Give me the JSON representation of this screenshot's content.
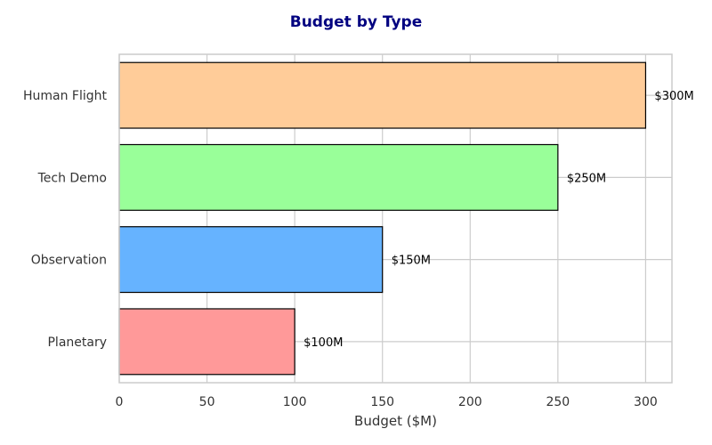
{
  "chart_data": {
    "type": "bar",
    "orientation": "horizontal",
    "title": "Budget by Type",
    "xlabel": "Budget ($M)",
    "ylabel": "",
    "categories": [
      "Planetary",
      "Observation",
      "Tech Demo",
      "Human Flight"
    ],
    "values": [
      100,
      150,
      250,
      300
    ],
    "data_labels": [
      "$100M",
      "$150M",
      "$250M",
      "$300M"
    ],
    "colors": [
      "#ff9999",
      "#66b3ff",
      "#99ff99",
      "#ffcc99"
    ],
    "xlim": [
      0,
      315
    ],
    "xticks": [
      0,
      50,
      100,
      150,
      200,
      250,
      300
    ],
    "grid": true
  },
  "style": {
    "title_color": "#000080",
    "grid_color": "#cccccc",
    "bar_edge_color": "#000000"
  }
}
